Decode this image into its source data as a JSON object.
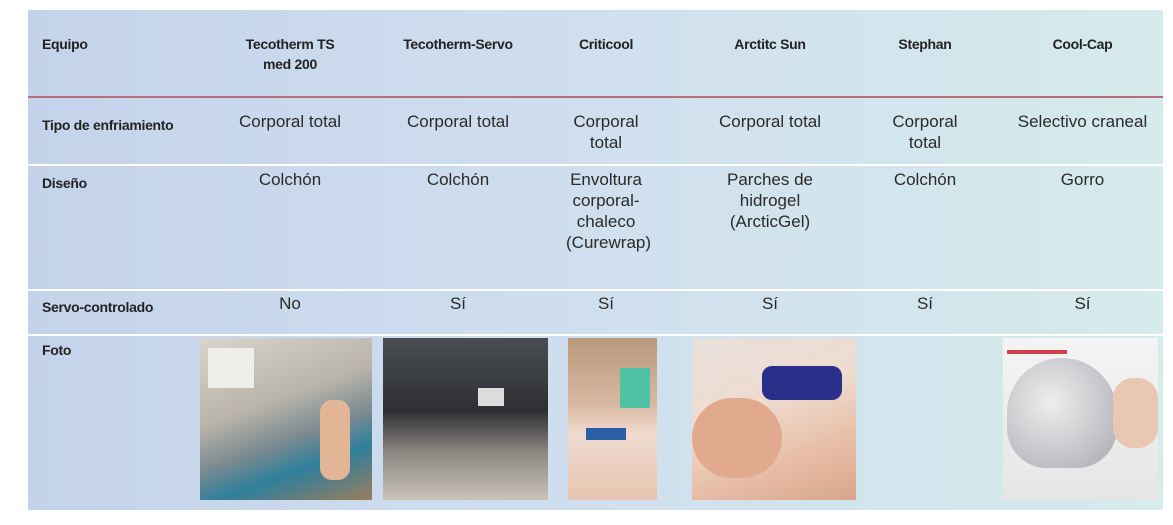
{
  "table": {
    "header": [
      "Equipo",
      "Tecotherm TS med 200",
      "Tecotherm-Servo",
      "Criticool",
      "Arctitc Sun",
      "Stephan",
      "Cool-Cap"
    ],
    "rows": [
      [
        "Tipo de enfriamiento",
        "Corporal total",
        "Corporal total",
        "Corporal total",
        "Corporal total",
        "Corporal total",
        "Selectivo craneal"
      ],
      [
        "Diseño",
        "Colchón",
        "Colchón",
        "Envoltura corporal-chaleco (Curewrap)",
        "Parches de hidrogel (ArcticGel)",
        "Colchón",
        "Gorro"
      ],
      [
        "Servo-controlado",
        "No",
        "Sí",
        "Sí",
        "Sí",
        "Sí",
        "Sí"
      ],
      [
        "Foto"
      ]
    ]
  }
}
